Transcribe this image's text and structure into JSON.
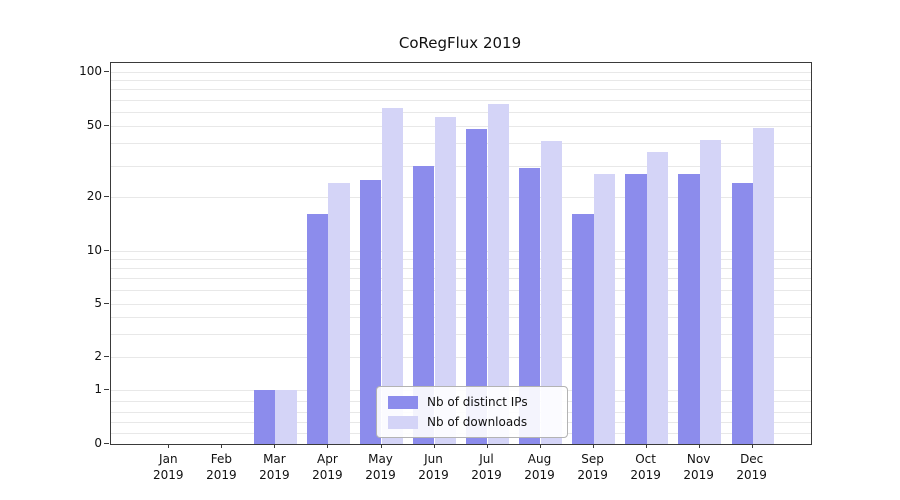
{
  "chart_data": {
    "type": "bar",
    "title": "CoRegFlux 2019",
    "categories": [
      "Jan 2019",
      "Feb 2019",
      "Mar 2019",
      "Apr 2019",
      "May 2019",
      "Jun 2019",
      "Jul 2019",
      "Aug 2019",
      "Sep 2019",
      "Oct 2019",
      "Nov 2019",
      "Dec 2019"
    ],
    "series": [
      {
        "name": "Nb of distinct IPs",
        "key": "distinct-ips",
        "color": "#8c8cec",
        "values": [
          0,
          0,
          1,
          16,
          25,
          30,
          48,
          29,
          16,
          27,
          27,
          24
        ]
      },
      {
        "name": "Nb of downloads",
        "key": "downloads",
        "color": "#d4d4f7",
        "values": [
          0,
          0,
          1,
          24,
          63,
          56,
          66,
          41,
          27,
          36,
          42,
          49
        ]
      }
    ],
    "y_axis": {
      "scale": "symlog",
      "ticks": [
        0,
        1,
        2,
        5,
        10,
        20,
        50,
        100
      ],
      "minor_gridlines": [
        0.2,
        0.4,
        0.6,
        0.8,
        1,
        2,
        3,
        4,
        5,
        6,
        7,
        8,
        9,
        10,
        20,
        30,
        40,
        50,
        60,
        70,
        80,
        90,
        100
      ],
      "ylim": [
        0,
        115
      ]
    },
    "legend": {
      "position": "lower center"
    },
    "grid": true,
    "colors": {
      "grid": "#e8e8e8",
      "spine": "#3a3a3a",
      "text": "#111111",
      "legend_border": "#b3b3b3"
    }
  }
}
